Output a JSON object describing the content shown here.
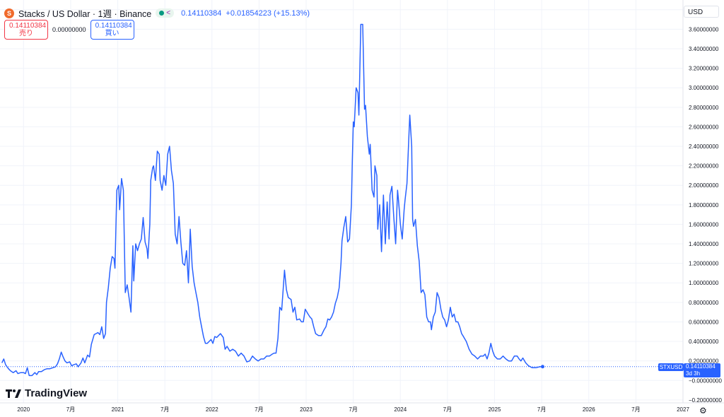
{
  "legend": {
    "coin_glyph": "S",
    "title": "Stacks / US Dollar · 1週 · Binance",
    "last": "0.14110384",
    "change": "+0.01854223 (+15.13%)"
  },
  "trade": {
    "sell_price": "0.14110384",
    "sell_label": "売り",
    "spread": "0.00000000",
    "buy_price": "0.14110384",
    "buy_label": "買い"
  },
  "currency": "USD",
  "price_tag": {
    "symbol": "STXUSD",
    "price": "0.14110384",
    "countdown": "3d 3h"
  },
  "logo_text": "TradingView",
  "colors": {
    "line": "#2962ff",
    "grid": "#f0f3fa",
    "axis_text": "#131722"
  },
  "chart_data": {
    "type": "line",
    "series": [
      {
        "name": "STXUSD"
      }
    ],
    "x_unit": "year",
    "xlim": [
      2019.75,
      2027.0
    ],
    "ylim": [
      -0.23,
      3.9
    ],
    "yticks": [
      3.8,
      3.6,
      3.4,
      3.2,
      3.0,
      2.8,
      2.6,
      2.4,
      2.2,
      2.0,
      1.8,
      1.6,
      1.4,
      1.2,
      1.0,
      0.8,
      0.6,
      0.4,
      0.2,
      0.0,
      -0.2
    ],
    "ytick_labels": [
      "3.80000000",
      "3.60000000",
      "3.40000000",
      "3.20000000",
      "3.00000000",
      "2.80000000",
      "2.60000000",
      "2.40000000",
      "2.20000000",
      "2.00000000",
      "1.80000000",
      "1.60000000",
      "1.40000000",
      "1.20000000",
      "1.00000000",
      "0.80000000",
      "0.60000000",
      "0.40000000",
      "0.20000000",
      "−0.00000000",
      "−0.20000000"
    ],
    "xticks": [
      {
        "x": 2020.0,
        "label": "2020"
      },
      {
        "x": 2020.5,
        "label": "7月"
      },
      {
        "x": 2021.0,
        "label": "2021"
      },
      {
        "x": 2021.5,
        "label": "7月"
      },
      {
        "x": 2022.0,
        "label": "2022"
      },
      {
        "x": 2022.5,
        "label": "7月"
      },
      {
        "x": 2023.0,
        "label": "2023"
      },
      {
        "x": 2023.5,
        "label": "7月"
      },
      {
        "x": 2024.0,
        "label": "2024"
      },
      {
        "x": 2024.5,
        "label": "7月"
      },
      {
        "x": 2025.0,
        "label": "2025"
      },
      {
        "x": 2025.5,
        "label": "7月"
      },
      {
        "x": 2026.0,
        "label": "2026"
      },
      {
        "x": 2026.5,
        "label": "7月"
      },
      {
        "x": 2027.0,
        "label": "2027"
      }
    ],
    "last_value": 0.1411,
    "points": [
      [
        2019.77,
        0.18
      ],
      [
        2019.79,
        0.22
      ],
      [
        2019.81,
        0.16
      ],
      [
        2019.84,
        0.12
      ],
      [
        2019.86,
        0.1
      ],
      [
        2019.89,
        0.08
      ],
      [
        2019.92,
        0.1
      ],
      [
        2019.94,
        0.07
      ],
      [
        2019.97,
        0.08
      ],
      [
        2020.0,
        0.08
      ],
      [
        2020.02,
        0.07
      ],
      [
        2020.04,
        0.13
      ],
      [
        2020.06,
        0.05
      ],
      [
        2020.09,
        0.05
      ],
      [
        2020.12,
        0.08
      ],
      [
        2020.14,
        0.06
      ],
      [
        2020.16,
        0.09
      ],
      [
        2020.19,
        0.09
      ],
      [
        2020.22,
        0.11
      ],
      [
        2020.25,
        0.12
      ],
      [
        2020.28,
        0.12
      ],
      [
        2020.31,
        0.13
      ],
      [
        2020.34,
        0.14
      ],
      [
        2020.36,
        0.17
      ],
      [
        2020.38,
        0.22
      ],
      [
        2020.4,
        0.29
      ],
      [
        2020.42,
        0.24
      ],
      [
        2020.44,
        0.2
      ],
      [
        2020.46,
        0.18
      ],
      [
        2020.49,
        0.19
      ],
      [
        2020.51,
        0.15
      ],
      [
        2020.53,
        0.16
      ],
      [
        2020.56,
        0.17
      ],
      [
        2020.58,
        0.14
      ],
      [
        2020.61,
        0.18
      ],
      [
        2020.63,
        0.23
      ],
      [
        2020.65,
        0.18
      ],
      [
        2020.68,
        0.26
      ],
      [
        2020.7,
        0.24
      ],
      [
        2020.72,
        0.37
      ],
      [
        2020.75,
        0.47
      ],
      [
        2020.77,
        0.48
      ],
      [
        2020.79,
        0.49
      ],
      [
        2020.81,
        0.47
      ],
      [
        2020.83,
        0.55
      ],
      [
        2020.85,
        0.43
      ],
      [
        2020.87,
        0.48
      ],
      [
        2020.88,
        0.8
      ],
      [
        2020.9,
        0.95
      ],
      [
        2020.92,
        1.15
      ],
      [
        2020.94,
        1.27
      ],
      [
        2020.96,
        1.25
      ],
      [
        2020.97,
        1.15
      ],
      [
        2020.99,
        1.95
      ],
      [
        2021.01,
        2.0
      ],
      [
        2021.02,
        1.75
      ],
      [
        2021.04,
        2.07
      ],
      [
        2021.06,
        1.95
      ],
      [
        2021.08,
        0.9
      ],
      [
        2021.1,
        0.98
      ],
      [
        2021.12,
        0.85
      ],
      [
        2021.14,
        0.7
      ],
      [
        2021.16,
        1.38
      ],
      [
        2021.17,
        1.02
      ],
      [
        2021.19,
        1.4
      ],
      [
        2021.21,
        1.33
      ],
      [
        2021.23,
        1.4
      ],
      [
        2021.25,
        1.45
      ],
      [
        2021.27,
        1.67
      ],
      [
        2021.29,
        1.42
      ],
      [
        2021.31,
        1.35
      ],
      [
        2021.32,
        1.25
      ],
      [
        2021.34,
        1.6
      ],
      [
        2021.35,
        2.05
      ],
      [
        2021.37,
        2.18
      ],
      [
        2021.38,
        2.2
      ],
      [
        2021.4,
        2.05
      ],
      [
        2021.42,
        2.35
      ],
      [
        2021.44,
        2.32
      ],
      [
        2021.45,
        2.05
      ],
      [
        2021.47,
        1.95
      ],
      [
        2021.49,
        2.1
      ],
      [
        2021.51,
        2.0
      ],
      [
        2021.53,
        2.32
      ],
      [
        2021.55,
        2.4
      ],
      [
        2021.57,
        2.15
      ],
      [
        2021.59,
        2.02
      ],
      [
        2021.61,
        1.5
      ],
      [
        2021.63,
        1.4
      ],
      [
        2021.65,
        1.68
      ],
      [
        2021.67,
        1.42
      ],
      [
        2021.69,
        1.2
      ],
      [
        2021.71,
        1.18
      ],
      [
        2021.73,
        1.33
      ],
      [
        2021.75,
        1.0
      ],
      [
        2021.77,
        1.55
      ],
      [
        2021.79,
        1.17
      ],
      [
        2021.81,
        1.0
      ],
      [
        2021.83,
        0.9
      ],
      [
        2021.85,
        0.8
      ],
      [
        2021.87,
        0.65
      ],
      [
        2021.89,
        0.55
      ],
      [
        2021.91,
        0.45
      ],
      [
        2021.93,
        0.38
      ],
      [
        2021.95,
        0.38
      ],
      [
        2021.97,
        0.4
      ],
      [
        2021.99,
        0.42
      ],
      [
        2022.01,
        0.38
      ],
      [
        2022.03,
        0.45
      ],
      [
        2022.05,
        0.44
      ],
      [
        2022.07,
        0.46
      ],
      [
        2022.09,
        0.48
      ],
      [
        2022.12,
        0.44
      ],
      [
        2022.14,
        0.32
      ],
      [
        2022.16,
        0.35
      ],
      [
        2022.19,
        0.3
      ],
      [
        2022.22,
        0.32
      ],
      [
        2022.25,
        0.3
      ],
      [
        2022.28,
        0.25
      ],
      [
        2022.31,
        0.28
      ],
      [
        2022.34,
        0.25
      ],
      [
        2022.37,
        0.19
      ],
      [
        2022.4,
        0.2
      ],
      [
        2022.43,
        0.25
      ],
      [
        2022.46,
        0.22
      ],
      [
        2022.49,
        0.2
      ],
      [
        2022.52,
        0.22
      ],
      [
        2022.55,
        0.22
      ],
      [
        2022.58,
        0.25
      ],
      [
        2022.61,
        0.25
      ],
      [
        2022.64,
        0.27
      ],
      [
        2022.66,
        0.28
      ],
      [
        2022.68,
        0.28
      ],
      [
        2022.7,
        0.43
      ],
      [
        2022.72,
        0.75
      ],
      [
        2022.74,
        0.72
      ],
      [
        2022.75,
        0.85
      ],
      [
        2022.77,
        1.13
      ],
      [
        2022.79,
        0.93
      ],
      [
        2022.81,
        0.85
      ],
      [
        2022.84,
        0.83
      ],
      [
        2022.86,
        0.7
      ],
      [
        2022.88,
        0.75
      ],
      [
        2022.9,
        0.62
      ],
      [
        2022.93,
        0.63
      ],
      [
        2022.95,
        0.6
      ],
      [
        2022.97,
        0.6
      ],
      [
        2022.99,
        0.73
      ],
      [
        2023.02,
        0.68
      ],
      [
        2023.04,
        0.65
      ],
      [
        2023.06,
        0.63
      ],
      [
        2023.08,
        0.55
      ],
      [
        2023.1,
        0.48
      ],
      [
        2023.13,
        0.46
      ],
      [
        2023.16,
        0.46
      ],
      [
        2023.19,
        0.52
      ],
      [
        2023.21,
        0.55
      ],
      [
        2023.23,
        0.63
      ],
      [
        2023.25,
        0.62
      ],
      [
        2023.27,
        0.65
      ],
      [
        2023.29,
        0.7
      ],
      [
        2023.31,
        0.79
      ],
      [
        2023.33,
        0.85
      ],
      [
        2023.35,
        0.95
      ],
      [
        2023.37,
        1.2
      ],
      [
        2023.38,
        1.43
      ],
      [
        2023.4,
        1.57
      ],
      [
        2023.42,
        1.68
      ],
      [
        2023.44,
        1.42
      ],
      [
        2023.46,
        1.45
      ],
      [
        2023.48,
        1.8
      ],
      [
        2023.49,
        2.25
      ],
      [
        2023.5,
        2.65
      ],
      [
        2023.51,
        2.6
      ],
      [
        2023.53,
        3.0
      ],
      [
        2023.55,
        2.95
      ],
      [
        2023.56,
        2.72
      ],
      [
        2023.58,
        3.65
      ],
      [
        2023.6,
        3.65
      ],
      [
        2023.62,
        2.78
      ],
      [
        2023.63,
        2.82
      ],
      [
        2023.65,
        2.5
      ],
      [
        2023.67,
        2.32
      ],
      [
        2023.68,
        2.42
      ],
      [
        2023.7,
        1.95
      ],
      [
        2023.72,
        1.88
      ],
      [
        2023.73,
        2.2
      ],
      [
        2023.75,
        2.1
      ],
      [
        2023.76,
        1.55
      ],
      [
        2023.78,
        1.8
      ],
      [
        2023.8,
        1.32
      ],
      [
        2023.82,
        1.9
      ],
      [
        2023.84,
        1.4
      ],
      [
        2023.86,
        1.83
      ],
      [
        2023.88,
        1.45
      ],
      [
        2023.89,
        1.9
      ],
      [
        2023.91,
        1.99
      ],
      [
        2023.93,
        1.68
      ],
      [
        2023.95,
        1.4
      ],
      [
        2023.97,
        1.95
      ],
      [
        2023.98,
        1.85
      ],
      [
        2024.0,
        1.6
      ],
      [
        2024.02,
        1.45
      ],
      [
        2024.04,
        1.75
      ],
      [
        2024.05,
        1.85
      ],
      [
        2024.07,
        2.02
      ],
      [
        2024.09,
        2.5
      ],
      [
        2024.1,
        2.72
      ],
      [
        2024.12,
        2.4
      ],
      [
        2024.13,
        1.65
      ],
      [
        2024.14,
        1.58
      ],
      [
        2024.16,
        1.65
      ],
      [
        2024.18,
        1.38
      ],
      [
        2024.2,
        1.22
      ],
      [
        2024.22,
        0.9
      ],
      [
        2024.24,
        0.93
      ],
      [
        2024.26,
        0.88
      ],
      [
        2024.28,
        0.65
      ],
      [
        2024.3,
        0.6
      ],
      [
        2024.32,
        0.6
      ],
      [
        2024.33,
        0.52
      ],
      [
        2024.35,
        0.65
      ],
      [
        2024.37,
        0.7
      ],
      [
        2024.39,
        0.9
      ],
      [
        2024.41,
        0.85
      ],
      [
        2024.43,
        0.73
      ],
      [
        2024.45,
        0.65
      ],
      [
        2024.47,
        0.62
      ],
      [
        2024.49,
        0.55
      ],
      [
        2024.51,
        0.62
      ],
      [
        2024.53,
        0.75
      ],
      [
        2024.55,
        0.65
      ],
      [
        2024.57,
        0.68
      ],
      [
        2024.59,
        0.6
      ],
      [
        2024.61,
        0.6
      ],
      [
        2024.63,
        0.55
      ],
      [
        2024.65,
        0.48
      ],
      [
        2024.67,
        0.45
      ],
      [
        2024.7,
        0.4
      ],
      [
        2024.73,
        0.32
      ],
      [
        2024.76,
        0.27
      ],
      [
        2024.79,
        0.25
      ],
      [
        2024.82,
        0.22
      ],
      [
        2024.85,
        0.25
      ],
      [
        2024.88,
        0.25
      ],
      [
        2024.9,
        0.27
      ],
      [
        2024.92,
        0.22
      ],
      [
        2024.94,
        0.28
      ],
      [
        2024.96,
        0.38
      ],
      [
        2024.98,
        0.3
      ],
      [
        2025.0,
        0.25
      ],
      [
        2025.03,
        0.22
      ],
      [
        2025.06,
        0.22
      ],
      [
        2025.09,
        0.25
      ],
      [
        2025.12,
        0.22
      ],
      [
        2025.15,
        0.2
      ],
      [
        2025.18,
        0.2
      ],
      [
        2025.21,
        0.25
      ],
      [
        2025.24,
        0.25
      ],
      [
        2025.26,
        0.22
      ],
      [
        2025.28,
        0.2
      ],
      [
        2025.3,
        0.23
      ],
      [
        2025.33,
        0.18
      ],
      [
        2025.36,
        0.15
      ],
      [
        2025.4,
        0.13
      ],
      [
        2025.44,
        0.13
      ],
      [
        2025.48,
        0.14
      ],
      [
        2025.51,
        0.1411
      ]
    ]
  }
}
